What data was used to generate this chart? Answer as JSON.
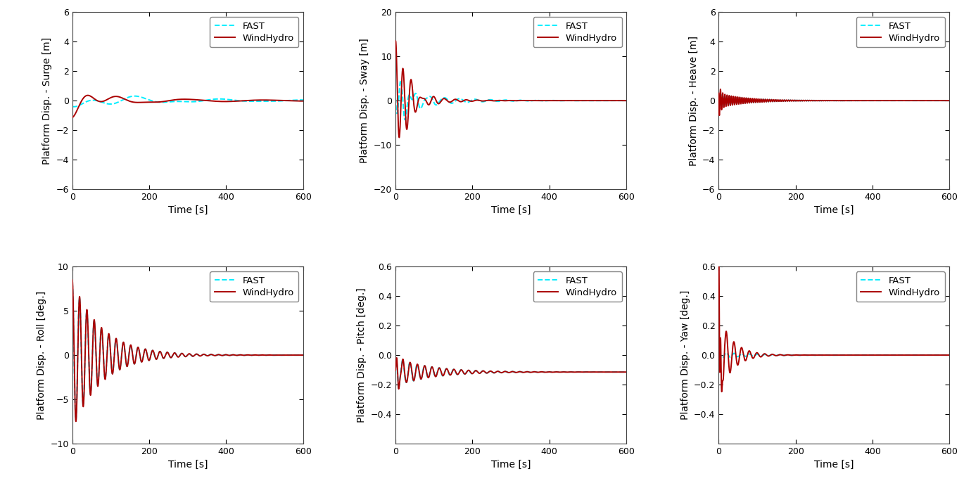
{
  "subplots": [
    {
      "ylabel": "Platform Disp. - Surge [m]",
      "xlabel": "Time [s]",
      "ylim": [
        -6,
        6
      ],
      "xlim": [
        0,
        600
      ],
      "yticks": [
        -6,
        -4,
        -2,
        0,
        2,
        4,
        6
      ],
      "xticks": [
        0,
        200,
        400,
        600
      ]
    },
    {
      "ylabel": "Platform Disp. - Sway [m]",
      "xlabel": "Time [s]",
      "ylim": [
        -20,
        20
      ],
      "xlim": [
        0,
        600
      ],
      "yticks": [
        -20,
        -10,
        0,
        10,
        20
      ],
      "xticks": [
        0,
        200,
        400,
        600
      ]
    },
    {
      "ylabel": "Platform Disp. - Heave [m]",
      "xlabel": "Time [s]",
      "ylim": [
        -6,
        6
      ],
      "xlim": [
        0,
        600
      ],
      "yticks": [
        -6,
        -4,
        -2,
        0,
        2,
        4,
        6
      ],
      "xticks": [
        0,
        200,
        400,
        600
      ]
    },
    {
      "ylabel": "Platform Disp. - Roll [deg.]",
      "xlabel": "Time [s]",
      "ylim": [
        -10,
        10
      ],
      "xlim": [
        0,
        600
      ],
      "yticks": [
        -10,
        -5,
        0,
        5,
        10
      ],
      "xticks": [
        0,
        200,
        400,
        600
      ]
    },
    {
      "ylabel": "Platform Disp. - Pitch [deg.]",
      "xlabel": "Time [s]",
      "ylim": [
        -0.6,
        0.6
      ],
      "xlim": [
        0,
        600
      ],
      "yticks": [
        -0.4,
        -0.2,
        0.0,
        0.2,
        0.4,
        0.6
      ],
      "xticks": [
        0,
        200,
        400,
        600
      ]
    },
    {
      "ylabel": "Platform Disp. - Yaw [deg.]",
      "xlabel": "Time [s]",
      "ylim": [
        -0.6,
        0.6
      ],
      "xlim": [
        0,
        600
      ],
      "yticks": [
        -0.4,
        -0.2,
        0.0,
        0.2,
        0.4,
        0.6
      ],
      "xticks": [
        0,
        200,
        400,
        600
      ]
    }
  ],
  "fast_color": "#00EEFF",
  "windhydro_color": "#AA0000",
  "fast_style": "--",
  "windhydro_style": "-",
  "fast_label": "FAST",
  "windhydro_label": "WindHydro",
  "legend_fontsize": 9.5,
  "axis_label_fontsize": 10,
  "tick_fontsize": 9,
  "line_width": 1.4,
  "background_color": "#ffffff",
  "axes_facecolor": "#ffffff"
}
